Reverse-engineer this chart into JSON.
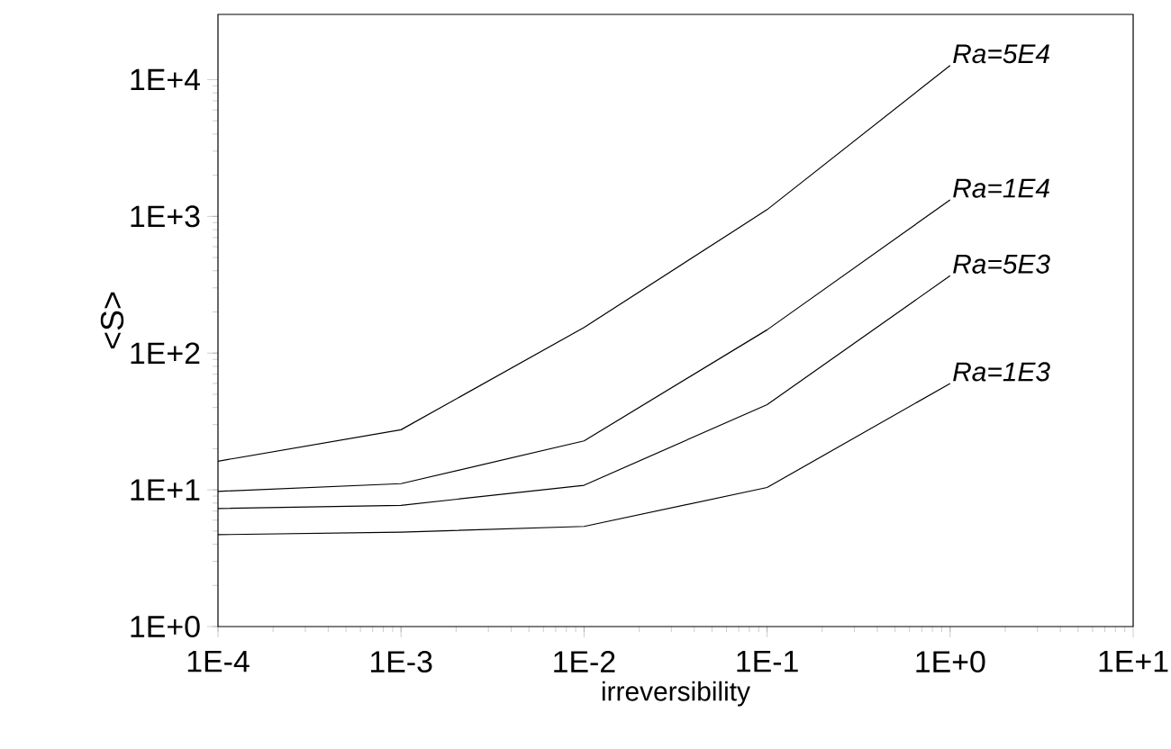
{
  "chart_data": {
    "type": "line",
    "xlabel": "irreversibility",
    "ylabel": "<S>",
    "log": "xy",
    "grid": false,
    "legend": false,
    "marker": "none",
    "line_style": "solid",
    "x": [
      0.0001,
      0.001,
      0.01,
      0.1,
      1
    ],
    "xlim": [
      0.0001,
      10
    ],
    "ylim": [
      1,
      30000
    ],
    "xticks": [
      {
        "value": 0.0001,
        "label": "1E-4"
      },
      {
        "value": 0.001,
        "label": "1E-3"
      },
      {
        "value": 0.01,
        "label": "1E-2"
      },
      {
        "value": 0.1,
        "label": "1E-1"
      },
      {
        "value": 1,
        "label": "1E+0"
      },
      {
        "value": 10,
        "label": "1E+1"
      }
    ],
    "yticks": [
      {
        "value": 1,
        "label": "1E+0"
      },
      {
        "value": 10,
        "label": "1E+1"
      },
      {
        "value": 100,
        "label": "1E+2"
      },
      {
        "value": 1000,
        "label": "1E+3"
      },
      {
        "value": 10000,
        "label": "1E+4"
      }
    ],
    "series": [
      {
        "name": "*Ra=5E4*",
        "color": "#000000",
        "values": [
          16.2,
          27.5,
          154,
          1120,
          12700
        ]
      },
      {
        "name": "*Ra=1E4*",
        "color": "#000000",
        "values": [
          9.75,
          11.1,
          22.8,
          148,
          1320
        ]
      },
      {
        "name": "*Ra=5E3*",
        "color": "#000000",
        "values": [
          7.3,
          7.7,
          10.8,
          42,
          368
        ]
      },
      {
        "name": "*Ra=1E3*",
        "color": "#000000",
        "values": [
          4.7,
          4.9,
          5.4,
          10.4,
          60
        ]
      }
    ]
  }
}
